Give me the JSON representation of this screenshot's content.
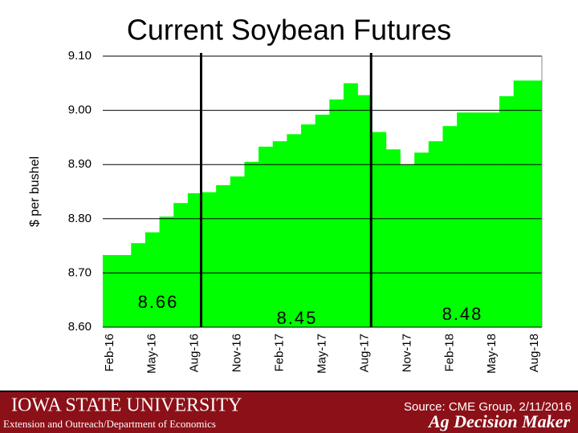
{
  "chart_data": {
    "type": "bar",
    "title": "Current Soybean Futures",
    "y_label": "$ per bushel",
    "categories": [
      "Feb-16",
      null,
      null,
      "May-16",
      null,
      null,
      "Aug-16",
      null,
      null,
      "Nov-16",
      null,
      null,
      "Feb-17",
      null,
      null,
      "May-17",
      null,
      null,
      "Aug-17",
      null,
      null,
      "Nov-17",
      null,
      null,
      "Feb-18",
      null,
      null,
      "May-18",
      null,
      null,
      "Aug-18"
    ],
    "values": [
      8.733,
      8.733,
      8.755,
      8.775,
      8.804,
      8.829,
      8.847,
      8.849,
      8.862,
      8.878,
      8.905,
      8.933,
      8.943,
      8.956,
      8.974,
      8.992,
      9.02,
      9.05,
      9.028,
      8.96,
      8.928,
      8.9,
      8.922,
      8.943,
      8.971,
      8.996,
      8.996,
      8.996,
      9.026,
      9.055,
      9.055
    ],
    "color": "#00ff00",
    "ylim": [
      8.6,
      9.1
    ],
    "yticks": [
      {
        "value": 8.6,
        "label": "8.60"
      },
      {
        "value": 8.7,
        "label": "8.70"
      },
      {
        "value": 8.8,
        "label": "8.80"
      },
      {
        "value": 8.9,
        "label": "8.90"
      },
      {
        "value": 9.0,
        "label": "9.00"
      },
      {
        "value": 9.1,
        "label": "9.10"
      }
    ],
    "grid": true,
    "annotations": [
      "8.66",
      "8.45",
      "8.48"
    ],
    "source": "Source: CME Group, 2/11/2016"
  },
  "footer": {
    "university": "Iowa State University",
    "department": "Extension and Outreach/Department of Economics",
    "brand": "Ag Decision Maker"
  }
}
